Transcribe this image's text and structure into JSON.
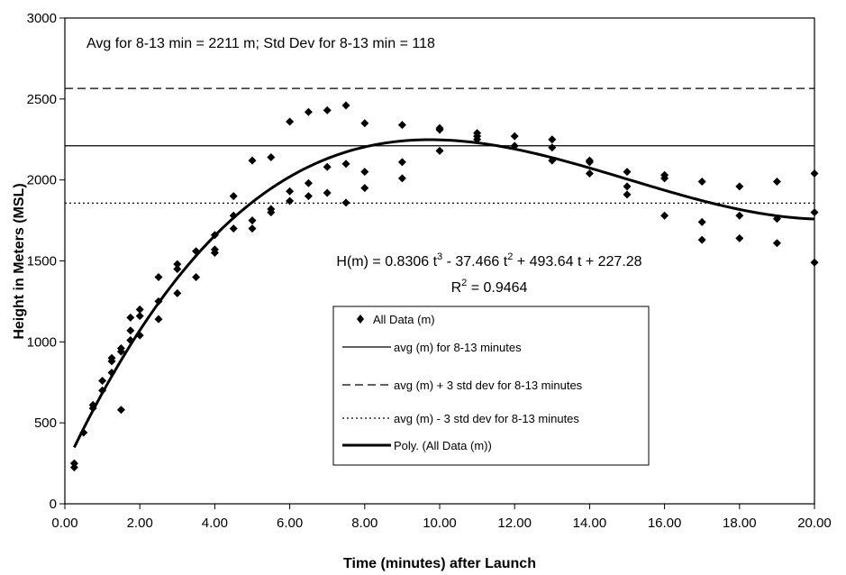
{
  "chart_data": {
    "type": "scatter",
    "xlabel": "Time (minutes) after Launch",
    "ylabel": "Height in Meters (MSL)",
    "xlim": [
      0,
      20
    ],
    "ylim": [
      0,
      3000
    ],
    "x_ticks": [
      "0.00",
      "2.00",
      "4.00",
      "6.00",
      "8.00",
      "10.00",
      "12.00",
      "14.00",
      "16.00",
      "18.00",
      "20.00"
    ],
    "y_ticks": [
      "0",
      "500",
      "1000",
      "1500",
      "2000",
      "2500",
      "3000"
    ],
    "grid": false,
    "annotations": {
      "stats": "Avg for 8-13 min =  2211 m;   Std Dev for 8-13 min = 118",
      "equation_parts": [
        "H(m) = 0.8306 t",
        "3",
        " - 37.466 t",
        "2",
        " + 493.64 t + 227.28"
      ],
      "r2_parts": [
        "R",
        "2",
        " = 0.9464"
      ]
    },
    "legend": {
      "position": "center-bottom",
      "entries": [
        {
          "label": "All Data (m)",
          "style": "marker"
        },
        {
          "label": "avg (m) for 8-13 minutes",
          "style": "solid"
        },
        {
          "label": "avg (m) + 3 std dev for 8-13 minutes",
          "style": "dashed"
        },
        {
          "label": "avg (m) - 3 std dev for 8-13 minutes",
          "style": "dotted"
        },
        {
          "label": "Poly. (All Data (m))",
          "style": "thick"
        }
      ]
    },
    "series": [
      {
        "name": "All Data (m)",
        "kind": "scatter",
        "color": "#000000",
        "points": [
          [
            0.25,
            225
          ],
          [
            0.25,
            250
          ],
          [
            0.5,
            440
          ],
          [
            0.75,
            590
          ],
          [
            0.75,
            610
          ],
          [
            1.0,
            700
          ],
          [
            1.0,
            760
          ],
          [
            1.25,
            810
          ],
          [
            1.25,
            880
          ],
          [
            1.25,
            900
          ],
          [
            1.5,
            580
          ],
          [
            1.5,
            940
          ],
          [
            1.5,
            960
          ],
          [
            1.75,
            1010
          ],
          [
            1.75,
            1070
          ],
          [
            1.75,
            1150
          ],
          [
            2.0,
            1040
          ],
          [
            2.0,
            1160
          ],
          [
            2.0,
            1200
          ],
          [
            2.5,
            1140
          ],
          [
            2.5,
            1250
          ],
          [
            2.5,
            1400
          ],
          [
            3.0,
            1300
          ],
          [
            3.0,
            1450
          ],
          [
            3.0,
            1480
          ],
          [
            3.5,
            1400
          ],
          [
            3.5,
            1560
          ],
          [
            4.0,
            1550
          ],
          [
            4.0,
            1570
          ],
          [
            4.0,
            1660
          ],
          [
            4.5,
            1700
          ],
          [
            4.5,
            1780
          ],
          [
            4.5,
            1900
          ],
          [
            5.0,
            1700
          ],
          [
            5.0,
            1750
          ],
          [
            5.0,
            2120
          ],
          [
            5.5,
            1800
          ],
          [
            5.5,
            1820
          ],
          [
            5.5,
            2140
          ],
          [
            6.0,
            1870
          ],
          [
            6.0,
            1930
          ],
          [
            6.0,
            2360
          ],
          [
            6.5,
            1900
          ],
          [
            6.5,
            1980
          ],
          [
            6.5,
            2420
          ],
          [
            7.0,
            1920
          ],
          [
            7.0,
            2080
          ],
          [
            7.0,
            2430
          ],
          [
            7.5,
            1860
          ],
          [
            7.5,
            2100
          ],
          [
            7.5,
            2460
          ],
          [
            8.0,
            1950
          ],
          [
            8.0,
            2050
          ],
          [
            8.0,
            2350
          ],
          [
            9.0,
            2010
          ],
          [
            9.0,
            2110
          ],
          [
            9.0,
            2340
          ],
          [
            10.0,
            2180
          ],
          [
            10.0,
            2310
          ],
          [
            10.0,
            2320
          ],
          [
            11.0,
            2250
          ],
          [
            11.0,
            2270
          ],
          [
            11.0,
            2290
          ],
          [
            12.0,
            2210
          ],
          [
            12.0,
            2270
          ],
          [
            13.0,
            2120
          ],
          [
            13.0,
            2200
          ],
          [
            13.0,
            2250
          ],
          [
            14.0,
            2040
          ],
          [
            14.0,
            2110
          ],
          [
            14.0,
            2120
          ],
          [
            15.0,
            1910
          ],
          [
            15.0,
            1960
          ],
          [
            15.0,
            2050
          ],
          [
            16.0,
            1780
          ],
          [
            16.0,
            2010
          ],
          [
            16.0,
            2030
          ],
          [
            17.0,
            1630
          ],
          [
            17.0,
            1740
          ],
          [
            17.0,
            1990
          ],
          [
            18.0,
            1640
          ],
          [
            18.0,
            1780
          ],
          [
            18.0,
            1960
          ],
          [
            19.0,
            1610
          ],
          [
            19.0,
            1760
          ],
          [
            19.0,
            1990
          ],
          [
            20.0,
            1490
          ],
          [
            20.0,
            1800
          ],
          [
            20.0,
            2040
          ]
        ]
      },
      {
        "name": "avg (m) for 8-13 minutes",
        "kind": "hline",
        "y": 2211,
        "dash": "solid"
      },
      {
        "name": "avg (m) + 3 std dev for 8-13 minutes",
        "kind": "hline",
        "y": 2565,
        "dash": "dashed"
      },
      {
        "name": "avg (m) - 3 std dev for 8-13 minutes",
        "kind": "hline",
        "y": 1857,
        "dash": "dotted"
      },
      {
        "name": "Poly. (All Data (m))",
        "kind": "poly",
        "coefficients": [
          0.8306,
          -37.466,
          493.64,
          227.28
        ],
        "x_range": [
          0.25,
          20
        ]
      }
    ]
  }
}
